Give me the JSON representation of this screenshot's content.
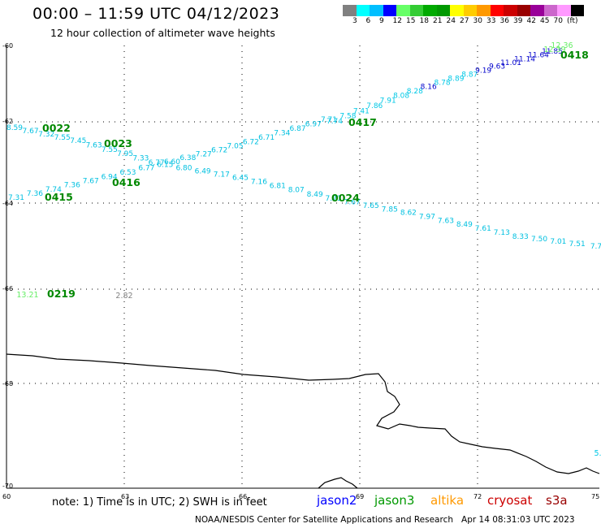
{
  "header": {
    "title": "00:00 – 11:59 UTC 04/12/2023",
    "subtitle": "12 hour collection of altimeter wave heights"
  },
  "legend": {
    "colors": [
      "#808080",
      "#00ffff",
      "#00bfff",
      "#0000ff",
      "#66ff66",
      "#33cc33",
      "#00aa00",
      "#009900",
      "#ffff00",
      "#ffcc00",
      "#ff9900",
      "#ff0000",
      "#cc0000",
      "#990000",
      "#990099",
      "#cc66cc",
      "#ff99ff",
      "#000000"
    ],
    "labels": [
      "3",
      "6",
      "9",
      "12",
      "15",
      "18",
      "21",
      "24",
      "27",
      "30",
      "33",
      "36",
      "39",
      "42",
      "45",
      "70",
      "(ft)"
    ]
  },
  "axes": {
    "lat_labels": [
      "-60",
      "-62",
      "-64",
      "-66",
      "-68",
      "-70"
    ],
    "lon_labels": [
      "60",
      "63",
      "66",
      "69",
      "72",
      "75"
    ]
  },
  "tracks": [
    {
      "name": "0418-0417",
      "color": "#00aadd",
      "values": [
        "7.74",
        "7.58",
        "7.41",
        "7.86",
        "7.91",
        "8.08",
        "8.28",
        "8.16",
        "8.78",
        "8.89",
        "8.87",
        "9.19",
        "9.63",
        "11.01",
        "11.14",
        "11.64",
        "11.85"
      ]
    },
    {
      "name": "0022-0023",
      "color": "#00aadd",
      "values": [
        "8.59",
        "7.67",
        "7.32",
        "7.55",
        "7.45",
        "7.63",
        "7.55",
        "7.95",
        "7.33",
        "6.77",
        "6.60",
        "6.38",
        "7.27",
        "6.72",
        "7.05",
        "6.72",
        "6.71",
        "7.34",
        "6.87",
        "6.97",
        "7.71"
      ]
    },
    {
      "name": "0415-0416",
      "color": "#00aadd",
      "values": [
        "7.31",
        "7.36",
        "7.74",
        "7.36",
        "7.67",
        "6.94",
        "6.53",
        "6.77",
        "6.15",
        "6.80",
        "6.49",
        "7.17",
        "6.45",
        "7.16",
        "6.81",
        "8.07",
        "8.49",
        "7.71",
        "7.67",
        "7.65",
        "7.85",
        "8.62",
        "7.97",
        "7.63",
        "8.49",
        "7.61",
        "7.13",
        "8.33",
        "7.50",
        "7.01",
        "7.51",
        "7.7"
      ]
    },
    {
      "name": "extras",
      "values": [
        "12.36",
        "12.39",
        "13.21",
        "2.82",
        "5."
      ]
    }
  ],
  "pass_times": [
    "0418",
    "0417",
    "0022",
    "0023",
    "0415",
    "0416",
    "0024",
    "0219"
  ],
  "footer": {
    "note": "note: 1) Time is in UTC; 2) SWH is in feet",
    "satellites": [
      {
        "name": "jason2",
        "color": "#0000ff"
      },
      {
        "name": "jason3",
        "color": "#009900"
      },
      {
        "name": "altika",
        "color": "#ff9900"
      },
      {
        "name": "cryosat",
        "color": "#cc0000"
      },
      {
        "name": "s3a",
        "color": "#990000"
      }
    ],
    "credit": "NOAA/NESDIS Center for Satellite Applications and Research",
    "timestamp": "Apr 14 08:31:03 UTC 2023"
  }
}
